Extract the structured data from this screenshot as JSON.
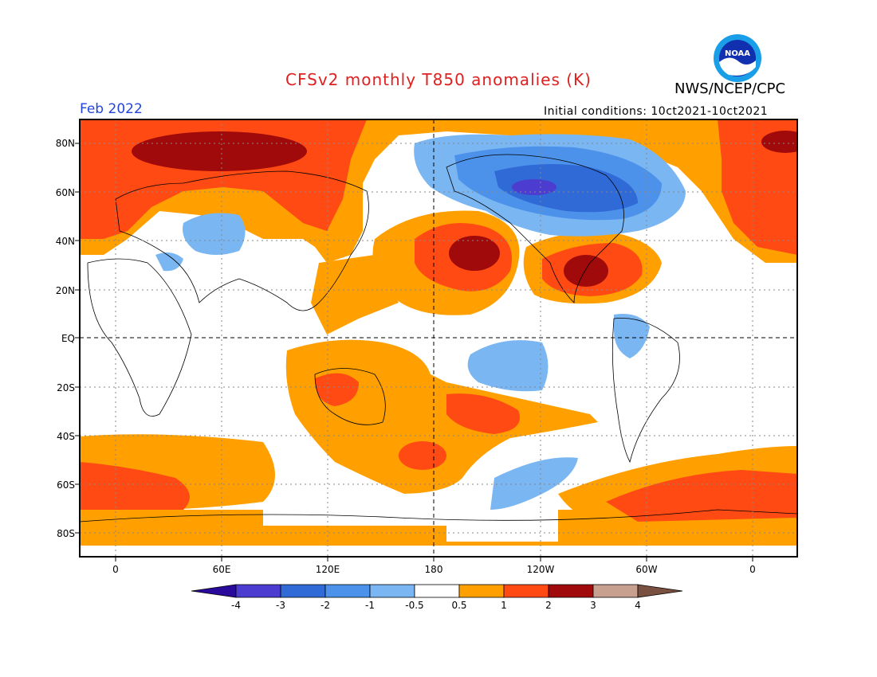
{
  "header": {
    "title": "CFSv2 monthly T850 anomalies (K)",
    "agency": "NWS/NCEP/CPC",
    "valid_month": "Feb 2022",
    "initial_conditions": "Initial conditions: 10ct2021-10ct2021",
    "logo_text": "NOAA"
  },
  "axes": {
    "lat_labels": [
      "80N",
      "60N",
      "40N",
      "20N",
      "EQ",
      "20S",
      "40S",
      "60S",
      "80S"
    ],
    "lon_labels": [
      "0",
      "60E",
      "120E",
      "180",
      "120W",
      "60W",
      "0"
    ]
  },
  "colorbar": {
    "labels": [
      "-4",
      "-3",
      "-2",
      "-1",
      "-0.5",
      "0.5",
      "1",
      "2",
      "3",
      "4"
    ],
    "colors": [
      "#2a0a9a",
      "#4c3cd0",
      "#2f6ad6",
      "#4c92ea",
      "#7ab6f2",
      "#ffffff",
      "#ffa000",
      "#ff4a14",
      "#a00a0a",
      "#c8a090",
      "#7a5040"
    ]
  },
  "colors": {
    "title": "#e02020",
    "valid": "#2244dd",
    "map_bg": "#ffffff"
  }
}
